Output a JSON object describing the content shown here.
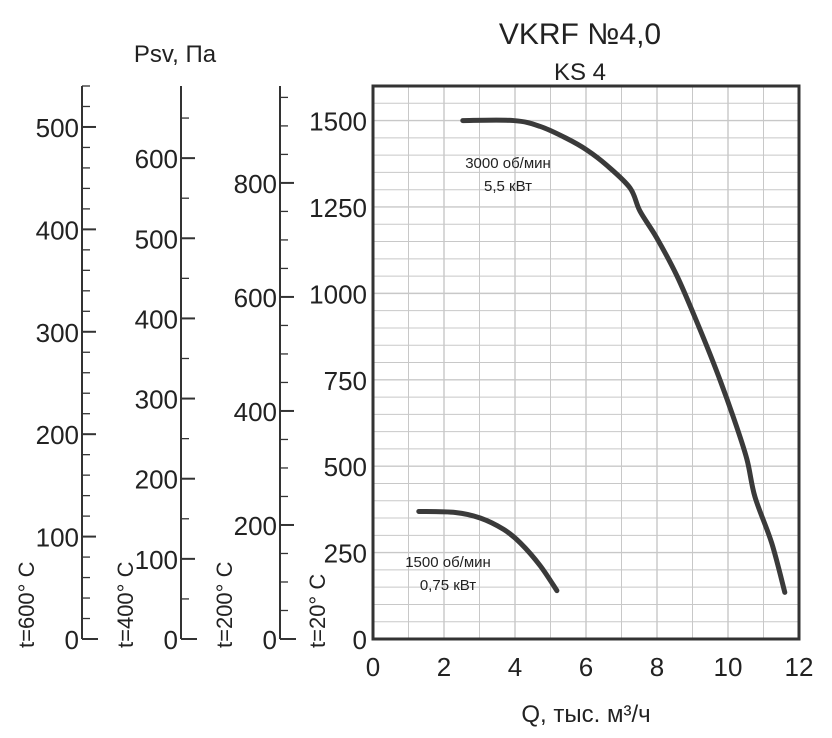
{
  "chart_data": {
    "type": "line",
    "title": "VKRF №4,0",
    "subtitle": "KS 4",
    "ylabel": "Psv, Па",
    "xlabel": "Q, тыс. м³/ч",
    "xlim": [
      0,
      12
    ],
    "ylim": [
      0,
      1600
    ],
    "grid": true,
    "x_ticks": [
      0,
      2,
      4,
      6,
      8,
      10,
      12
    ],
    "y_ticks": [
      0,
      250,
      500,
      750,
      1000,
      1250,
      1500
    ],
    "temperature_axes": [
      {
        "label": "t=600° C",
        "max": 540,
        "ticks": [
          0,
          100,
          200,
          300,
          400,
          500
        ],
        "minor_step": 20
      },
      {
        "label": "t=400° C",
        "max": 690,
        "ticks": [
          0,
          100,
          200,
          300,
          400,
          500,
          600
        ],
        "minor_step": 50
      },
      {
        "label": "t=200° C",
        "max": 970,
        "ticks": [
          0,
          200,
          400,
          600,
          800
        ],
        "minor_step": 50
      },
      {
        "label": "t=20° C"
      }
    ],
    "series": [
      {
        "name": "3000 об/мин",
        "power": "5,5 кВт",
        "x": [
          2.53,
          3.96,
          4.71,
          5.46,
          6.02,
          6.58,
          7.24,
          7.52,
          7.99,
          8.56,
          9.12,
          9.68,
          10.15,
          10.53,
          10.76,
          11.23,
          11.6
        ],
        "y": [
          1500,
          1500,
          1483,
          1448,
          1415,
          1371,
          1305,
          1238,
          1161,
          1051,
          918,
          775,
          642,
          521,
          411,
          278,
          135
        ]
      },
      {
        "name": "1500 об/мин",
        "power": "0,75 кВт",
        "x": [
          1.29,
          2.32,
          3.02,
          3.68,
          4.15,
          4.71,
          5.18
        ],
        "y": [
          369,
          366,
          350,
          317,
          278,
          212,
          140
        ]
      }
    ],
    "colors": {
      "curve": "#3a3a3a",
      "grid": "#c8c8c8",
      "axis": "#333333"
    }
  }
}
